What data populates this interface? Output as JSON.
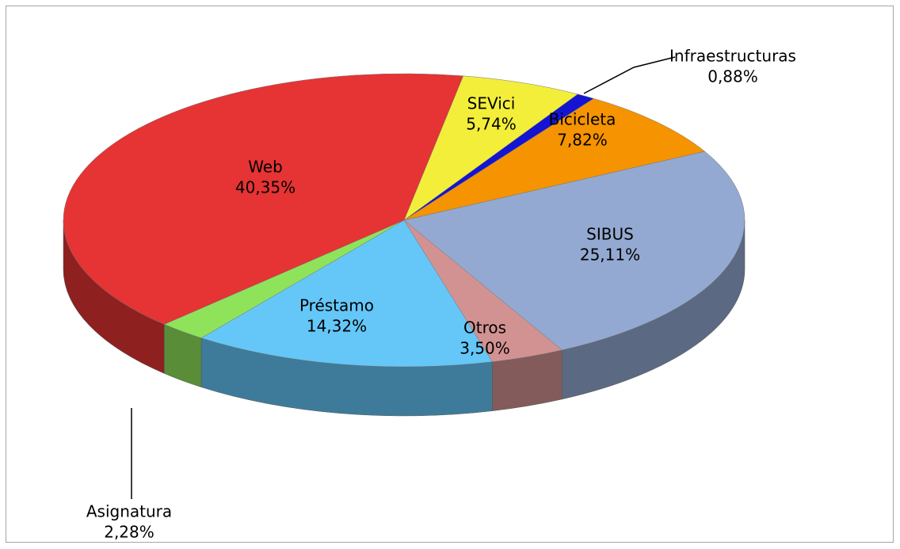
{
  "chart_data": {
    "type": "pie3d",
    "categories": [
      "SEVici",
      "Infraestructuras",
      "Bicicleta",
      "SIBUS",
      "Otros",
      "Préstamo",
      "Asignatura",
      "Web"
    ],
    "values": [
      5.74,
      0.88,
      7.82,
      25.11,
      3.5,
      14.32,
      2.28,
      40.35
    ],
    "value_labels": [
      "5,74%",
      "0,88%",
      "7,82%",
      "25,11%",
      "3,50%",
      "14,32%",
      "2,28%",
      "40,35%"
    ],
    "colors": [
      "#f3ee3a",
      "#1414d2",
      "#f59300",
      "#93a9d1",
      "#d39292",
      "#64c7f8",
      "#8fe35a",
      "#e63333"
    ]
  }
}
